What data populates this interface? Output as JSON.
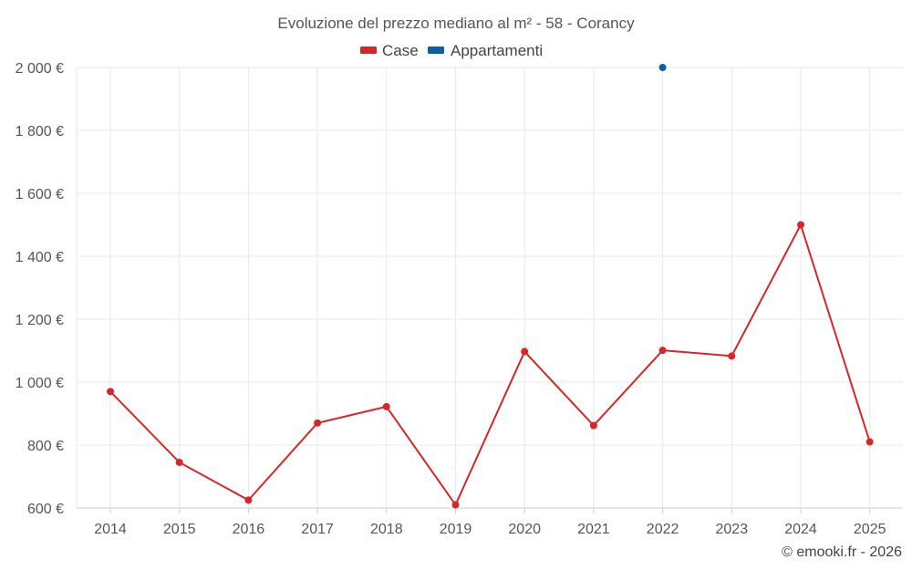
{
  "chart_data": {
    "type": "line",
    "title": "Evoluzione del prezzo mediano al m² - 58 - Corancy",
    "categories": [
      "2014",
      "2015",
      "2016",
      "2017",
      "2018",
      "2019",
      "2020",
      "2021",
      "2022",
      "2023",
      "2024",
      "2025"
    ],
    "series": [
      {
        "name": "Case",
        "color": "#d62728",
        "values": [
          970,
          745,
          625,
          870,
          922,
          610,
          1097,
          862,
          1101,
          1083,
          1500,
          810
        ]
      },
      {
        "name": "Appartamenti",
        "color": "#0b5fa5",
        "values": [
          null,
          null,
          null,
          null,
          null,
          null,
          null,
          null,
          2000,
          null,
          null,
          null
        ]
      }
    ],
    "ylim": [
      600,
      2000
    ],
    "yticks": [
      600,
      800,
      1000,
      1200,
      1400,
      1600,
      1800,
      2000
    ],
    "ytick_labels": [
      "600 €",
      "800 €",
      "1 000 €",
      "1 200 €",
      "1 400 €",
      "1 600 €",
      "1 800 €",
      "2 000 €"
    ],
    "xlabel": "",
    "ylabel": "",
    "grid": true,
    "legend_position": "top-center"
  },
  "footer": {
    "credit": "© emooki.fr - 2026"
  }
}
